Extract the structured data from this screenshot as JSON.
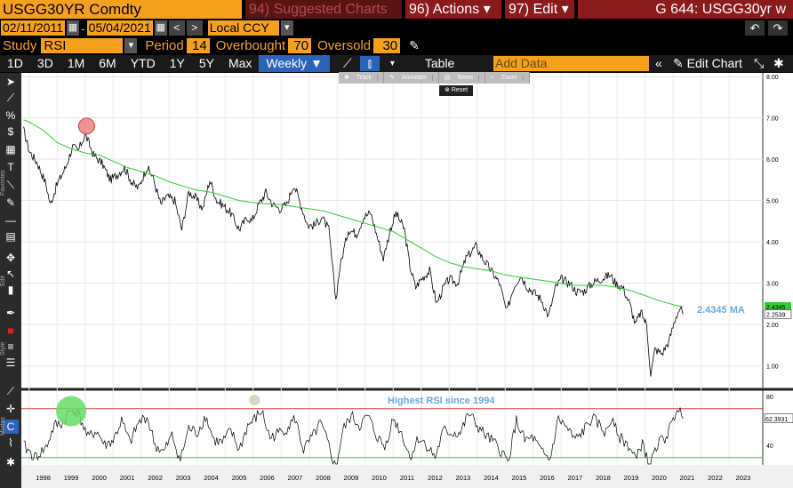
{
  "header": {
    "ticker": "USGG30YR Comdty",
    "suggested": "94) Suggested Charts",
    "actions": "96) Actions",
    "actions_arrow": "▾",
    "edit": "97) Edit",
    "edit_arrow": "▾",
    "security": "G 644: USGG30yr w"
  },
  "dates": {
    "start": "02/11/2011",
    "end": "05/04/2021",
    "currency": "Local CCY"
  },
  "study": {
    "label": "Study",
    "name": "RSI",
    "period_label": "Period",
    "period": "14",
    "overbought_label": "Overbought",
    "overbought": "70",
    "oversold_label": "Oversold",
    "oversold": "30"
  },
  "periods": [
    "1D",
    "3D",
    "1M",
    "6M",
    "YTD",
    "1Y",
    "5Y",
    "Max"
  ],
  "frequency": "Weekly",
  "table_label": "Table",
  "add_data_placeholder": "Add Data",
  "edit_chart": "Edit Chart",
  "float_toolbar": [
    "Track",
    "Annotate",
    "News",
    "Zoom"
  ],
  "reset_label": "Reset",
  "toolbar_sections": [
    "Favorites",
    "Edit",
    "Style",
    "Modes"
  ],
  "annotations": {
    "ma_label": "2.4345 MA",
    "rsi_note": "Highest RSI since 1994"
  },
  "chart_data": {
    "type": "line",
    "x_years": [
      "1998",
      "1999",
      "2000",
      "2001",
      "2002",
      "2003",
      "2004",
      "2005",
      "2006",
      "2007",
      "2008",
      "2009",
      "2010",
      "2011",
      "2012",
      "2013",
      "2014",
      "2015",
      "2016",
      "2017",
      "2018",
      "2019",
      "2020",
      "2021",
      "2022",
      "2023"
    ],
    "price_axis": {
      "ylim": [
        0.8,
        8.0
      ],
      "ticks": [
        "8.00",
        "7.00",
        "6.00",
        "5.00",
        "4.00",
        "3.00",
        "2.00",
        "1.00"
      ]
    },
    "rsi_axis": {
      "ticks": [
        "80",
        "40"
      ],
      "overbought": 70,
      "oversold": 30
    },
    "price_last": "2.2539",
    "ma_last": "2.4345",
    "rsi_last": "62.3931",
    "price": [
      [
        1997.8,
        6.7
      ],
      [
        1998.0,
        6.2
      ],
      [
        1998.3,
        5.9
      ],
      [
        1998.6,
        5.4
      ],
      [
        1998.75,
        4.9
      ],
      [
        1999.0,
        5.4
      ],
      [
        1999.3,
        5.8
      ],
      [
        1999.55,
        6.3
      ],
      [
        1999.75,
        6.2
      ],
      [
        2000.0,
        6.6
      ],
      [
        2000.3,
        6.1
      ],
      [
        2000.6,
        5.9
      ],
      [
        2000.9,
        5.5
      ],
      [
        2001.1,
        5.6
      ],
      [
        2001.4,
        5.8
      ],
      [
        2001.7,
        5.4
      ],
      [
        2001.9,
        5.3
      ],
      [
        2002.2,
        5.8
      ],
      [
        2002.4,
        5.6
      ],
      [
        2002.7,
        4.9
      ],
      [
        2002.9,
        5.1
      ],
      [
        2003.2,
        5.0
      ],
      [
        2003.45,
        4.3
      ],
      [
        2003.7,
        5.2
      ],
      [
        2003.9,
        5.1
      ],
      [
        2004.2,
        4.8
      ],
      [
        2004.45,
        5.5
      ],
      [
        2004.7,
        5.0
      ],
      [
        2004.9,
        4.9
      ],
      [
        2005.2,
        4.7
      ],
      [
        2005.5,
        4.3
      ],
      [
        2005.8,
        4.6
      ],
      [
        2005.95,
        4.5
      ],
      [
        2006.2,
        4.9
      ],
      [
        2006.45,
        5.2
      ],
      [
        2006.7,
        4.9
      ],
      [
        2006.95,
        4.8
      ],
      [
        2007.2,
        4.9
      ],
      [
        2007.45,
        5.4
      ],
      [
        2007.7,
        4.9
      ],
      [
        2007.95,
        4.4
      ],
      [
        2008.2,
        4.4
      ],
      [
        2008.45,
        4.6
      ],
      [
        2008.7,
        4.3
      ],
      [
        2008.95,
        2.6
      ],
      [
        2009.1,
        3.4
      ],
      [
        2009.4,
        4.3
      ],
      [
        2009.7,
        4.2
      ],
      [
        2009.95,
        4.6
      ],
      [
        2010.2,
        4.7
      ],
      [
        2010.4,
        4.2
      ],
      [
        2010.65,
        3.6
      ],
      [
        2010.9,
        4.3
      ],
      [
        2011.1,
        4.7
      ],
      [
        2011.4,
        4.3
      ],
      [
        2011.6,
        3.4
      ],
      [
        2011.8,
        2.9
      ],
      [
        2012.0,
        3.1
      ],
      [
        2012.3,
        3.3
      ],
      [
        2012.55,
        2.5
      ],
      [
        2012.8,
        2.9
      ],
      [
        2013.0,
        3.1
      ],
      [
        2013.3,
        3.0
      ],
      [
        2013.6,
        3.6
      ],
      [
        2013.95,
        3.9
      ],
      [
        2014.2,
        3.6
      ],
      [
        2014.5,
        3.3
      ],
      [
        2014.8,
        3.0
      ],
      [
        2015.05,
        2.3
      ],
      [
        2015.3,
        2.9
      ],
      [
        2015.55,
        3.2
      ],
      [
        2015.8,
        2.9
      ],
      [
        2016.0,
        2.8
      ],
      [
        2016.3,
        2.6
      ],
      [
        2016.55,
        2.2
      ],
      [
        2016.8,
        2.9
      ],
      [
        2017.0,
        3.1
      ],
      [
        2017.3,
        3.0
      ],
      [
        2017.55,
        2.8
      ],
      [
        2017.8,
        2.8
      ],
      [
        2018.1,
        3.0
      ],
      [
        2018.4,
        3.1
      ],
      [
        2018.75,
        3.2
      ],
      [
        2018.95,
        3.0
      ],
      [
        2019.2,
        2.9
      ],
      [
        2019.45,
        2.5
      ],
      [
        2019.65,
        2.0
      ],
      [
        2019.85,
        2.3
      ],
      [
        2020.05,
        2.0
      ],
      [
        2020.2,
        0.8
      ],
      [
        2020.35,
        1.4
      ],
      [
        2020.6,
        1.3
      ],
      [
        2020.85,
        1.6
      ],
      [
        2021.1,
        2.2
      ],
      [
        2021.25,
        2.4
      ],
      [
        2021.35,
        2.25
      ]
    ],
    "ma": [
      [
        1997.8,
        6.95
      ],
      [
        1998.0,
        6.9
      ],
      [
        1998.5,
        6.7
      ],
      [
        1999.0,
        6.4
      ],
      [
        1999.5,
        6.25
      ],
      [
        2000.0,
        6.15
      ],
      [
        2000.5,
        6.1
      ],
      [
        2001.0,
        5.95
      ],
      [
        2001.5,
        5.8
      ],
      [
        2002.0,
        5.7
      ],
      [
        2002.5,
        5.6
      ],
      [
        2003.0,
        5.45
      ],
      [
        2003.5,
        5.35
      ],
      [
        2004.0,
        5.25
      ],
      [
        2004.5,
        5.2
      ],
      [
        2005.0,
        5.1
      ],
      [
        2005.5,
        5.0
      ],
      [
        2006.0,
        4.95
      ],
      [
        2006.5,
        4.92
      ],
      [
        2007.0,
        4.9
      ],
      [
        2007.5,
        4.85
      ],
      [
        2008.0,
        4.8
      ],
      [
        2008.5,
        4.75
      ],
      [
        2009.0,
        4.65
      ],
      [
        2009.5,
        4.55
      ],
      [
        2010.0,
        4.45
      ],
      [
        2010.5,
        4.35
      ],
      [
        2011.0,
        4.25
      ],
      [
        2011.5,
        4.05
      ],
      [
        2012.0,
        3.85
      ],
      [
        2012.5,
        3.65
      ],
      [
        2013.0,
        3.5
      ],
      [
        2013.5,
        3.4
      ],
      [
        2014.0,
        3.35
      ],
      [
        2014.5,
        3.3
      ],
      [
        2015.0,
        3.2
      ],
      [
        2015.5,
        3.15
      ],
      [
        2016.0,
        3.1
      ],
      [
        2016.5,
        3.05
      ],
      [
        2017.0,
        3.0
      ],
      [
        2017.5,
        2.95
      ],
      [
        2018.0,
        2.95
      ],
      [
        2018.5,
        2.95
      ],
      [
        2019.0,
        2.9
      ],
      [
        2019.5,
        2.82
      ],
      [
        2020.0,
        2.7
      ],
      [
        2020.5,
        2.58
      ],
      [
        2021.0,
        2.48
      ],
      [
        2021.35,
        2.43
      ]
    ],
    "rsi": [
      [
        1997.8,
        40
      ],
      [
        1998.2,
        30
      ],
      [
        1998.6,
        38
      ],
      [
        1998.9,
        56
      ],
      [
        1999.2,
        58
      ],
      [
        1999.4,
        66
      ],
      [
        1999.6,
        70
      ],
      [
        1999.8,
        64
      ],
      [
        2000.1,
        46
      ],
      [
        2000.4,
        52
      ],
      [
        2000.7,
        40
      ],
      [
        2001.0,
        44
      ],
      [
        2001.3,
        60
      ],
      [
        2001.6,
        42
      ],
      [
        2001.9,
        58
      ],
      [
        2002.2,
        64
      ],
      [
        2002.5,
        40
      ],
      [
        2002.8,
        34
      ],
      [
        2003.1,
        48
      ],
      [
        2003.4,
        28
      ],
      [
        2003.7,
        54
      ],
      [
        2004.0,
        50
      ],
      [
        2004.3,
        64
      ],
      [
        2004.6,
        44
      ],
      [
        2004.9,
        42
      ],
      [
        2005.2,
        52
      ],
      [
        2005.5,
        36
      ],
      [
        2005.8,
        56
      ],
      [
        2006.0,
        60
      ],
      [
        2006.3,
        68
      ],
      [
        2006.6,
        46
      ],
      [
        2006.9,
        50
      ],
      [
        2007.2,
        54
      ],
      [
        2007.5,
        62
      ],
      [
        2007.8,
        36
      ],
      [
        2008.1,
        46
      ],
      [
        2008.4,
        58
      ],
      [
        2008.7,
        40
      ],
      [
        2008.95,
        20
      ],
      [
        2009.2,
        52
      ],
      [
        2009.5,
        64
      ],
      [
        2009.8,
        56
      ],
      [
        2010.1,
        64
      ],
      [
        2010.4,
        48
      ],
      [
        2010.7,
        38
      ],
      [
        2011.0,
        62
      ],
      [
        2011.3,
        50
      ],
      [
        2011.6,
        30
      ],
      [
        2011.9,
        46
      ],
      [
        2012.2,
        40
      ],
      [
        2012.5,
        30
      ],
      [
        2012.8,
        52
      ],
      [
        2013.1,
        50
      ],
      [
        2013.4,
        50
      ],
      [
        2013.7,
        66
      ],
      [
        2014.0,
        56
      ],
      [
        2014.3,
        48
      ],
      [
        2014.6,
        42
      ],
      [
        2014.9,
        34
      ],
      [
        2015.1,
        26
      ],
      [
        2015.4,
        60
      ],
      [
        2015.7,
        44
      ],
      [
        2016.0,
        46
      ],
      [
        2016.3,
        34
      ],
      [
        2016.6,
        28
      ],
      [
        2016.9,
        62
      ],
      [
        2017.2,
        54
      ],
      [
        2017.5,
        44
      ],
      [
        2017.8,
        52
      ],
      [
        2018.1,
        62
      ],
      [
        2018.3,
        58
      ],
      [
        2018.6,
        50
      ],
      [
        2018.85,
        64
      ],
      [
        2019.1,
        46
      ],
      [
        2019.4,
        40
      ],
      [
        2019.7,
        28
      ],
      [
        2019.9,
        44
      ],
      [
        2020.15,
        20
      ],
      [
        2020.4,
        40
      ],
      [
        2020.7,
        46
      ],
      [
        2020.95,
        56
      ],
      [
        2021.15,
        72
      ],
      [
        2021.35,
        62
      ]
    ]
  }
}
